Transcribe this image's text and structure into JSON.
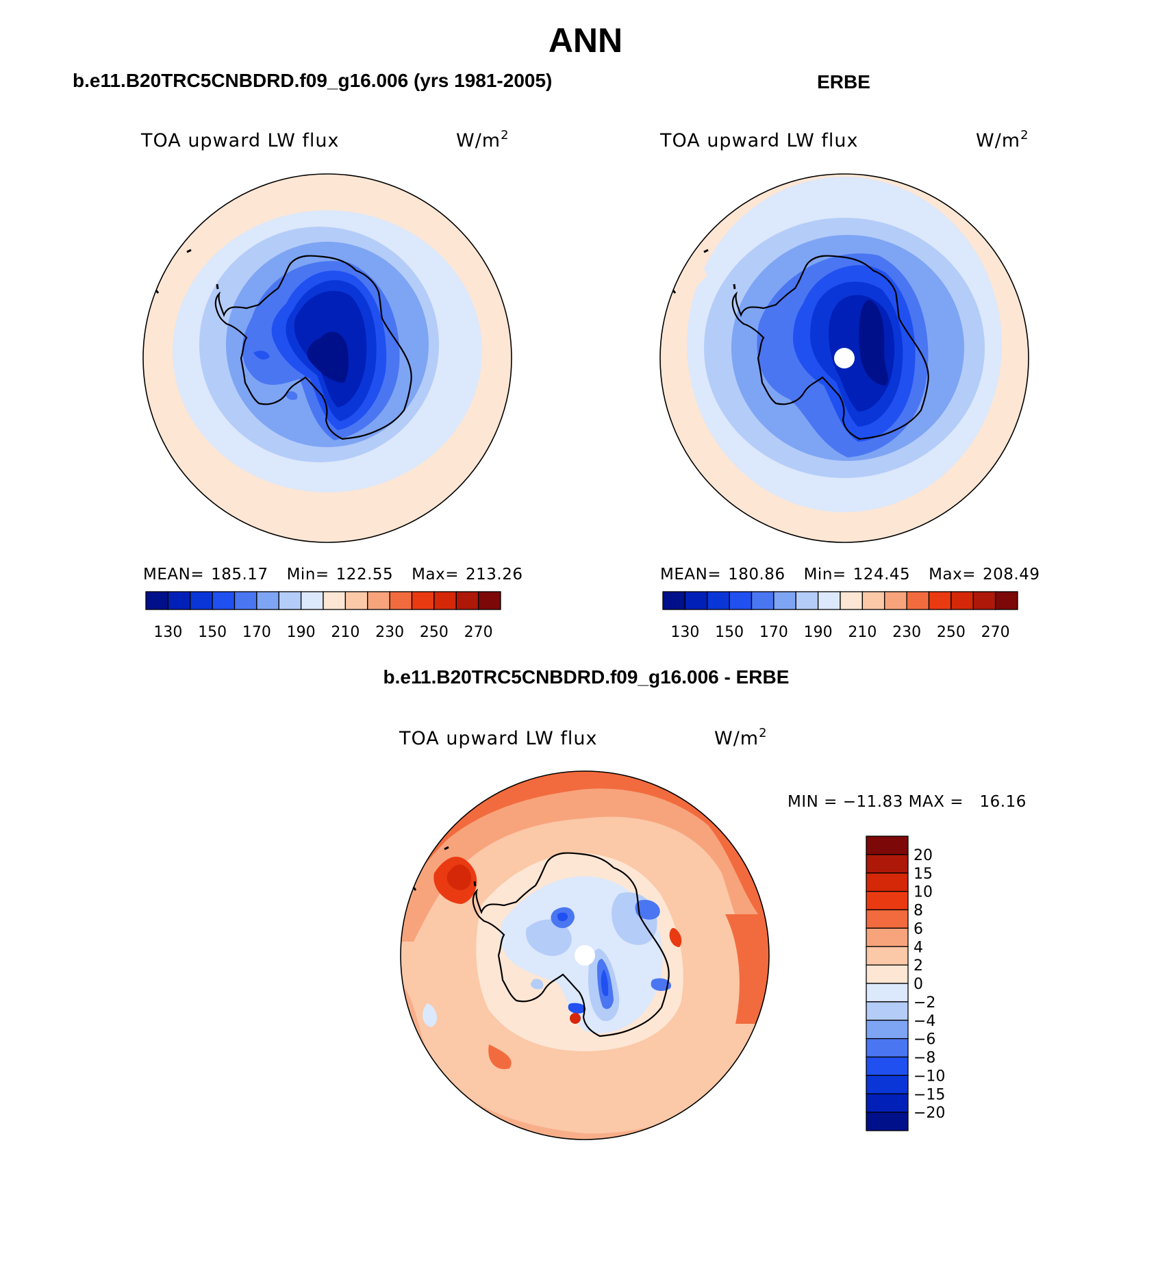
{
  "figure": {
    "title": "ANN",
    "title_size": "large",
    "background": "#ffffff"
  },
  "panels": [
    {
      "id": "model",
      "heading": "b.e11.B20TRC5CNBDRD.f09_g16.006 (yrs 1981-2005)",
      "variable": "TOA upward LW flux",
      "units_base": "W/m",
      "units_exp": "2",
      "stats": {
        "mean_label": "MEAN=",
        "mean": "185.17",
        "min_label": "Min=",
        "min": "122.55",
        "max_label": "Max=",
        "max": "213.26"
      },
      "has_pole_hole": false,
      "colorbar": {
        "orientation": "horizontal",
        "colors": [
          "#00108a",
          "#0020b8",
          "#0a36d8",
          "#2050f0",
          "#4a76f2",
          "#7ea4f4",
          "#b4ccf8",
          "#dce8fb",
          "#fde6d4",
          "#fbc8a8",
          "#f7a47c",
          "#f26b3e",
          "#ea3a12",
          "#d42808",
          "#ad1808",
          "#7d0808"
        ],
        "tick_labels": [
          "130",
          "150",
          "170",
          "190",
          "210",
          "230",
          "250",
          "270"
        ]
      }
    },
    {
      "id": "obs",
      "heading": "ERBE",
      "variable": "TOA upward LW flux",
      "units_base": "W/m",
      "units_exp": "2",
      "stats": {
        "mean_label": "MEAN=",
        "mean": "180.86",
        "min_label": "Min=",
        "min": "124.45",
        "max_label": "Max=",
        "max": "208.49"
      },
      "has_pole_hole": true,
      "colorbar": {
        "orientation": "horizontal",
        "colors": [
          "#00108a",
          "#0020b8",
          "#0a36d8",
          "#2050f0",
          "#4a76f2",
          "#7ea4f4",
          "#b4ccf8",
          "#dce8fb",
          "#fde6d4",
          "#fbc8a8",
          "#f7a47c",
          "#f26b3e",
          "#ea3a12",
          "#d42808",
          "#ad1808",
          "#7d0808"
        ],
        "tick_labels": [
          "130",
          "150",
          "170",
          "190",
          "210",
          "230",
          "250",
          "270"
        ]
      }
    },
    {
      "id": "diff",
      "heading": "b.e11.B20TRC5CNBDRD.f09_g16.006 - ERBE",
      "variable": "TOA upward LW flux",
      "units_base": "W/m",
      "units_exp": "2",
      "minmax_text": "MIN = −11.83 MAX =   16.16",
      "has_pole_hole": true,
      "colorbar": {
        "orientation": "vertical",
        "colors_top_to_bottom": [
          "#7d0808",
          "#ad1808",
          "#d42808",
          "#ea3a12",
          "#f26b3e",
          "#f7a47c",
          "#fbc8a8",
          "#fde6d4",
          "#dce8fb",
          "#b4ccf8",
          "#7ea4f4",
          "#4a76f2",
          "#2050f0",
          "#0a36d8",
          "#0020b8",
          "#00108a"
        ],
        "tick_labels_top_to_bottom": [
          "20",
          "15",
          "10",
          "8",
          "6",
          "4",
          "2",
          "0",
          "−2",
          "−4",
          "−6",
          "−8",
          "−10",
          "−15",
          "−20"
        ]
      }
    }
  ],
  "map": {
    "projection": "south polar stereographic",
    "coastline": "Antarctica",
    "coast_color": "#000000",
    "land_fill": "none"
  }
}
